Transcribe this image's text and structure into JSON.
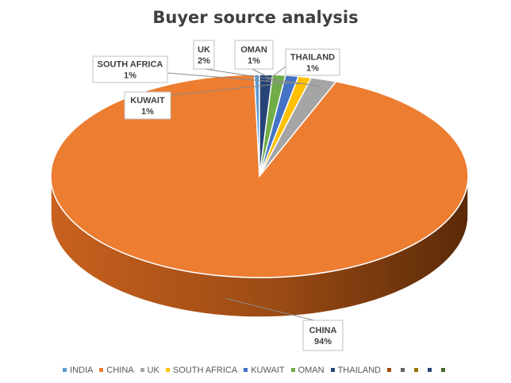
{
  "chart_data": {
    "type": "pie",
    "title": "Buyer source analysis",
    "slices": [
      {
        "name": "INDIA",
        "value": 0.4,
        "color": "#5B9BD5"
      },
      {
        "name": "CHINA",
        "value": 94,
        "label": "CHINA",
        "value_label": "94%",
        "color": "#ED7D31"
      },
      {
        "name": "UK",
        "value": 2,
        "label": "UK",
        "value_label": "2%",
        "color": "#A5A5A5"
      },
      {
        "name": "SOUTH AFRICA",
        "value": 1,
        "label": "SOUTH AFRICA",
        "value_label": "1%",
        "color": "#FFC000"
      },
      {
        "name": "KUWAIT",
        "value": 1,
        "label": "KUWAIT",
        "value_label": "1%",
        "color": "#4472C4"
      },
      {
        "name": "OMAN",
        "value": 1,
        "label": "OMAN",
        "value_label": "1%",
        "color": "#70AD47"
      },
      {
        "name": "THAILAND",
        "value": 1,
        "label": "THAILAND",
        "value_label": "1%",
        "color": "#264478"
      }
    ],
    "legend": {
      "position": "bottom",
      "entries": [
        {
          "name": "INDIA",
          "color": "#5B9BD5"
        },
        {
          "name": "CHINA",
          "color": "#ED7D31"
        },
        {
          "name": "UK",
          "color": "#A5A5A5"
        },
        {
          "name": "SOUTH AFRICA",
          "color": "#FFC000"
        },
        {
          "name": "KUWAIT",
          "color": "#4472C4"
        },
        {
          "name": "OMAN",
          "color": "#70AD47"
        },
        {
          "name": "THAILAND",
          "color": "#264478"
        },
        {
          "name": "",
          "color": "#9E480E"
        },
        {
          "name": "",
          "color": "#636363"
        },
        {
          "name": "",
          "color": "#997300"
        },
        {
          "name": "",
          "color": "#264478"
        },
        {
          "name": "",
          "color": "#43682B"
        }
      ]
    }
  }
}
